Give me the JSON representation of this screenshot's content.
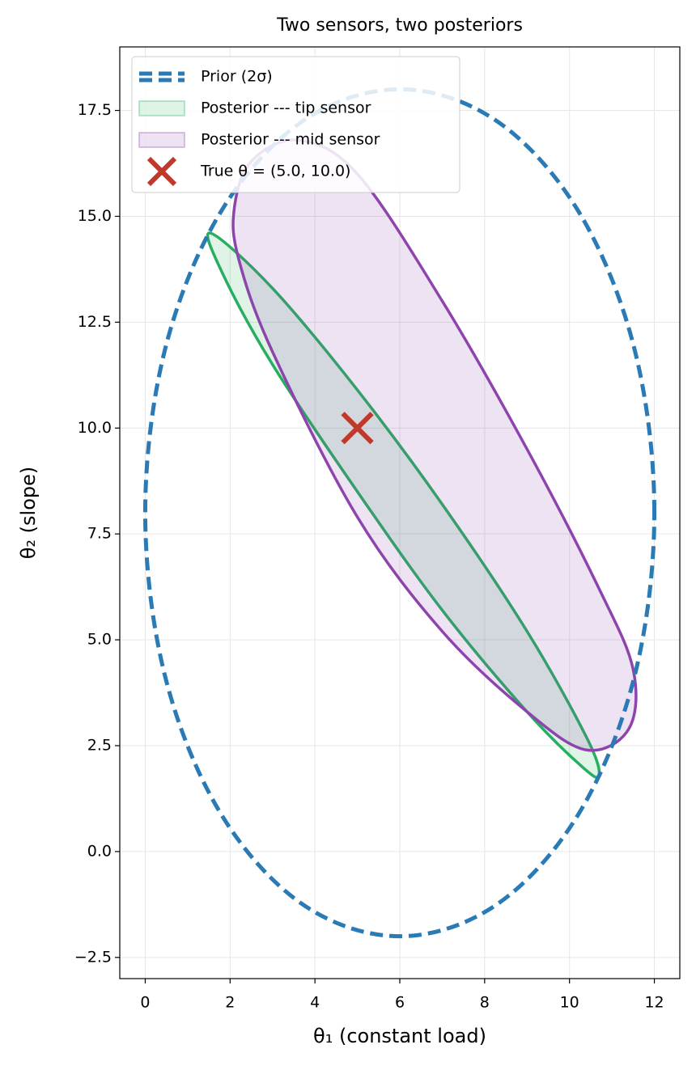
{
  "chart_data": {
    "type": "line",
    "title": "Two sensors, two posteriors",
    "xlabel": "θ₁ (constant load)",
    "ylabel": "θ₂ (slope)",
    "xlim": [
      -0.6,
      12.6
    ],
    "ylim": [
      -3,
      19
    ],
    "xticks": [
      0,
      2,
      4,
      6,
      8,
      10,
      12
    ],
    "yticks": [
      {
        "value": -2.5,
        "label": "−2.5"
      },
      {
        "value": 0,
        "label": "0.0"
      },
      2.5,
      {
        "value": 5,
        "label": "5.0"
      },
      7.5,
      {
        "value": 10,
        "label": "10.0"
      },
      12.5,
      {
        "value": 15,
        "label": "15.0"
      },
      17.5
    ],
    "grid": true,
    "legend": "upper left",
    "series": [
      {
        "name": "Prior (2σ)",
        "color": "#2a7ab5",
        "style": "dashed",
        "x": [
          12,
          11.54,
          10.24,
          8.3,
          6,
          3.7,
          1.76,
          0.46,
          0,
          0.46,
          1.76,
          3.7,
          6,
          8.3,
          10.24,
          11.54
        ],
        "y": [
          8,
          11.83,
          15.07,
          17.24,
          18,
          17.24,
          15.07,
          11.83,
          8,
          4.17,
          0.93,
          -1.24,
          -2,
          -1.24,
          0.93,
          4.17
        ]
      },
      {
        "name": "Posterior --- tip sensor",
        "color": "#27ae60",
        "style": "filled",
        "x": [
          1.55,
          3,
          5,
          7,
          9,
          10.4,
          10.7,
          10.3,
          9,
          7,
          5,
          3,
          1.8
        ],
        "y": [
          14.6,
          13.3,
          10.9,
          8.2,
          5.2,
          2.7,
          1.8,
          2.0,
          3.3,
          5.7,
          8.5,
          11.5,
          13.7
        ]
      },
      {
        "name": "Posterior --- mid sensor",
        "color": "#8e44ad",
        "style": "filled",
        "x": [
          2.1,
          2.5,
          3.6,
          5,
          7,
          9,
          10.7,
          11.5,
          11.4,
          10.4,
          9,
          7,
          5,
          3,
          2.2
        ],
        "y": [
          15.2,
          16.3,
          16.8,
          16,
          13,
          9.5,
          6.2,
          4.3,
          2.9,
          2.4,
          3.3,
          5.2,
          7.9,
          11.8,
          14
        ]
      },
      {
        "name": "True θ = (5.0, 10.0)",
        "color": "#c0392b",
        "style": "marker",
        "x": [
          5
        ],
        "y": [
          10
        ]
      }
    ]
  }
}
